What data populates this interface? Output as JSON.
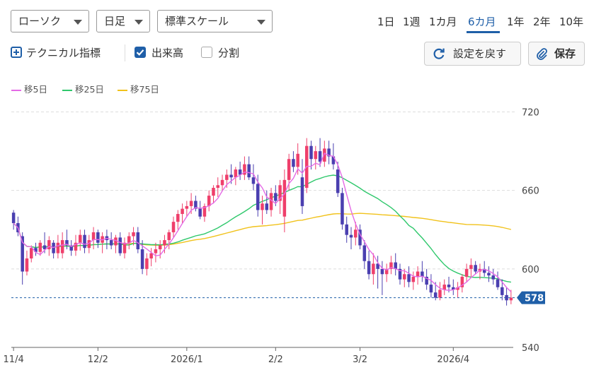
{
  "toolbar": {
    "chart_type": "ローソク",
    "period_type": "日足",
    "scale": "標準スケール",
    "ranges": [
      "1日",
      "1週",
      "1カ月",
      "6カ月",
      "1年",
      "2年",
      "10年"
    ],
    "active_range": "6カ月"
  },
  "options": {
    "technical_label": "テクニカル指標",
    "volume_label": "出来高",
    "volume_checked": true,
    "split_label": "分割",
    "split_checked": false,
    "reset_label": "設定を戻す",
    "save_label": "保存"
  },
  "legend": [
    "移5日",
    "移25日",
    "移75日"
  ],
  "colors": {
    "up": "#ef3f6b",
    "down": "#4a3fb0",
    "ma5": "#e46ae6",
    "ma25": "#2fc86c",
    "ma75": "#f1c21b",
    "accent": "#1f5fa8"
  },
  "chart_data": {
    "type": "candlestick",
    "y_ticks": [
      "720",
      "660",
      "600",
      "540"
    ],
    "ylim": [
      540,
      730
    ],
    "x_ticks": [
      "11/4",
      "12/2",
      "2026/1",
      "2/2",
      "3/2",
      "2026/4"
    ],
    "x_tick_index": [
      0,
      19,
      39,
      59,
      78,
      99
    ],
    "last_price": "578",
    "grid": "horizontal dashed",
    "ohlc": [
      [
        643,
        645,
        630,
        635
      ],
      [
        635,
        640,
        625,
        628
      ],
      [
        625,
        628,
        588,
        598
      ],
      [
        598,
        614,
        595,
        608
      ],
      [
        608,
        618,
        605,
        616
      ],
      [
        616,
        620,
        610,
        613
      ],
      [
        613,
        622,
        610,
        620
      ],
      [
        618,
        628,
        612,
        615
      ],
      [
        615,
        625,
        610,
        622
      ],
      [
        620,
        622,
        608,
        612
      ],
      [
        612,
        626,
        608,
        620
      ],
      [
        612,
        628,
        608,
        622
      ],
      [
        622,
        630,
        615,
        618
      ],
      [
        618,
        622,
        610,
        614
      ],
      [
        614,
        626,
        610,
        620
      ],
      [
        620,
        630,
        614,
        626
      ],
      [
        626,
        630,
        612,
        616
      ],
      [
        616,
        626,
        612,
        622
      ],
      [
        622,
        632,
        615,
        628
      ],
      [
        628,
        630,
        616,
        620
      ],
      [
        620,
        628,
        612,
        625
      ],
      [
        625,
        630,
        615,
        622
      ],
      [
        622,
        628,
        615,
        618
      ],
      [
        618,
        626,
        612,
        624
      ],
      [
        624,
        628,
        610,
        612
      ],
      [
        612,
        624,
        608,
        620
      ],
      [
        620,
        628,
        615,
        625
      ],
      [
        625,
        632,
        618,
        628
      ],
      [
        628,
        632,
        612,
        615
      ],
      [
        615,
        622,
        596,
        600
      ],
      [
        600,
        612,
        595,
        608
      ],
      [
        608,
        616,
        602,
        612
      ],
      [
        612,
        620,
        605,
        615
      ],
      [
        615,
        622,
        608,
        618
      ],
      [
        618,
        626,
        612,
        622
      ],
      [
        622,
        630,
        615,
        628
      ],
      [
        628,
        640,
        624,
        636
      ],
      [
        636,
        645,
        630,
        642
      ],
      [
        642,
        650,
        635,
        646
      ],
      [
        646,
        652,
        640,
        648
      ],
      [
        648,
        658,
        642,
        652
      ],
      [
        652,
        656,
        644,
        646
      ],
      [
        646,
        652,
        638,
        640
      ],
      [
        640,
        650,
        636,
        648
      ],
      [
        648,
        660,
        644,
        656
      ],
      [
        656,
        664,
        650,
        662
      ],
      [
        662,
        670,
        655,
        664
      ],
      [
        664,
        672,
        660,
        668
      ],
      [
        668,
        676,
        662,
        672
      ],
      [
        672,
        680,
        665,
        670
      ],
      [
        670,
        678,
        664,
        676
      ],
      [
        676,
        682,
        668,
        672
      ],
      [
        672,
        686,
        668,
        680
      ],
      [
        680,
        686,
        668,
        670
      ],
      [
        670,
        680,
        660,
        665
      ],
      [
        665,
        672,
        640,
        645
      ],
      [
        645,
        656,
        634,
        650
      ],
      [
        650,
        660,
        642,
        645
      ],
      [
        645,
        662,
        640,
        658
      ],
      [
        658,
        664,
        648,
        652
      ],
      [
        652,
        668,
        642,
        664
      ],
      [
        640,
        676,
        628,
        668
      ],
      [
        668,
        688,
        660,
        684
      ],
      [
        684,
        690,
        674,
        678
      ],
      [
        678,
        696,
        672,
        688
      ],
      [
        670,
        684,
        642,
        648
      ],
      [
        662,
        700,
        658,
        694
      ],
      [
        694,
        698,
        676,
        684
      ],
      [
        684,
        694,
        676,
        690
      ],
      [
        690,
        700,
        678,
        682
      ],
      [
        682,
        698,
        678,
        692
      ],
      [
        692,
        698,
        680,
        686
      ],
      [
        686,
        696,
        676,
        680
      ],
      [
        676,
        682,
        655,
        658
      ],
      [
        658,
        662,
        630,
        634
      ],
      [
        634,
        640,
        620,
        626
      ],
      [
        626,
        632,
        615,
        624
      ],
      [
        624,
        636,
        618,
        630
      ],
      [
        630,
        634,
        615,
        618
      ],
      [
        618,
        622,
        600,
        606
      ],
      [
        606,
        614,
        592,
        596
      ],
      [
        596,
        612,
        588,
        604
      ],
      [
        604,
        610,
        585,
        600
      ],
      [
        600,
        606,
        580,
        596
      ],
      [
        596,
        604,
        590,
        600
      ],
      [
        600,
        610,
        596,
        605
      ],
      [
        605,
        612,
        595,
        600
      ],
      [
        600,
        604,
        588,
        592
      ],
      [
        592,
        600,
        586,
        596
      ],
      [
        596,
        602,
        586,
        590
      ],
      [
        590,
        598,
        584,
        594
      ],
      [
        594,
        602,
        588,
        598
      ],
      [
        598,
        606,
        590,
        594
      ],
      [
        594,
        600,
        584,
        588
      ],
      [
        588,
        596,
        578,
        582
      ],
      [
        582,
        590,
        576,
        578
      ],
      [
        578,
        590,
        576,
        584
      ],
      [
        584,
        592,
        580,
        588
      ],
      [
        588,
        594,
        582,
        586
      ],
      [
        586,
        592,
        580,
        584
      ],
      [
        584,
        590,
        578,
        586
      ],
      [
        586,
        596,
        582,
        594
      ],
      [
        594,
        604,
        590,
        600
      ],
      [
        600,
        608,
        594,
        603
      ],
      [
        603,
        606,
        596,
        598
      ],
      [
        598,
        604,
        592,
        600
      ],
      [
        600,
        606,
        594,
        597
      ],
      [
        597,
        602,
        590,
        595
      ],
      [
        595,
        600,
        588,
        592
      ],
      [
        592,
        598,
        584,
        586
      ],
      [
        586,
        592,
        576,
        580
      ],
      [
        580,
        586,
        572,
        576
      ],
      [
        576,
        584,
        573,
        578
      ]
    ]
  }
}
